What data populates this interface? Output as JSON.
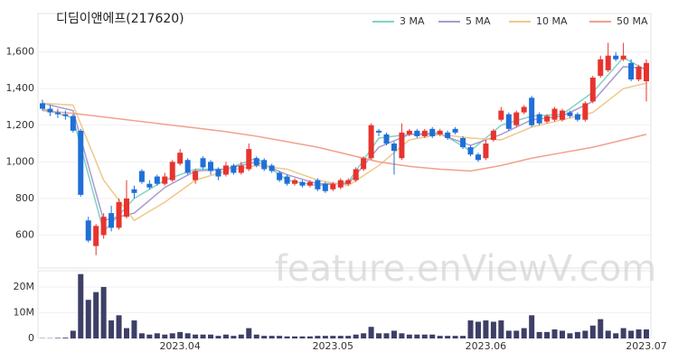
{
  "chart_data": {
    "type": "candlestick",
    "title": "디딤이앤에프(217620)",
    "watermark": "feature.enViewV.com",
    "categories": [
      null,
      null,
      null,
      null,
      null,
      null,
      null,
      null,
      null,
      null,
      null,
      null,
      null,
      null,
      null,
      null,
      null,
      null,
      "2023.04",
      null,
      null,
      null,
      null,
      null,
      null,
      null,
      null,
      null,
      null,
      null,
      null,
      null,
      null,
      null,
      null,
      null,
      null,
      null,
      "2023.05",
      null,
      null,
      null,
      null,
      null,
      null,
      null,
      null,
      null,
      null,
      null,
      null,
      null,
      null,
      null,
      null,
      null,
      null,
      null,
      "2023.06",
      null,
      null,
      null,
      null,
      null,
      null,
      null,
      null,
      null,
      null,
      null,
      null,
      null,
      null,
      null,
      null,
      null,
      null,
      null,
      null,
      "2023.07"
    ],
    "open": [
      1320,
      1290,
      1270,
      1260,
      1250,
      1170,
      680,
      540,
      600,
      720,
      640,
      700,
      850,
      950,
      880,
      920,
      880,
      900,
      990,
      1010,
      900,
      1020,
      1000,
      960,
      930,
      980,
      940,
      960,
      1020,
      1010,
      980,
      940,
      920,
      880,
      890,
      870,
      900,
      880,
      850,
      860,
      880,
      900,
      960,
      1020,
      1170,
      1150,
      1100,
      1020,
      1150,
      1170,
      1140,
      1180,
      1150,
      1160,
      1180,
      1130,
      1080,
      1040,
      1020,
      1120,
      1230,
      1260,
      1200,
      1270,
      1350,
      1260,
      1220,
      1230,
      1230,
      1270,
      1260,
      1230,
      1330,
      1470,
      1500,
      1580,
      1560,
      1540,
      1450,
      1440
    ],
    "high": [
      1340,
      1310,
      1290,
      1280,
      1260,
      1180,
      700,
      660,
      720,
      760,
      800,
      900,
      870,
      960,
      900,
      930,
      940,
      1010,
      1070,
      1020,
      960,
      1030,
      1010,
      970,
      1000,
      990,
      1000,
      1100,
      1030,
      1020,
      990,
      950,
      930,
      910,
      900,
      900,
      910,
      890,
      890,
      910,
      910,
      970,
      1030,
      1210,
      1180,
      1160,
      1110,
      1210,
      1180,
      1180,
      1180,
      1190,
      1180,
      1170,
      1190,
      1140,
      1090,
      1050,
      1120,
      1180,
      1300,
      1270,
      1280,
      1310,
      1360,
      1270,
      1260,
      1300,
      1290,
      1280,
      1270,
      1330,
      1470,
      1580,
      1650,
      1600,
      1650,
      1560,
      1530,
      1560
    ],
    "low": [
      1280,
      1250,
      1240,
      1230,
      1160,
      810,
      560,
      490,
      580,
      620,
      630,
      690,
      800,
      880,
      850,
      870,
      870,
      890,
      980,
      930,
      880,
      960,
      930,
      900,
      920,
      930,
      930,
      950,
      970,
      950,
      940,
      890,
      870,
      870,
      860,
      860,
      840,
      830,
      840,
      850,
      870,
      890,
      950,
      1010,
      1140,
      1090,
      930,
      1010,
      1140,
      1130,
      1130,
      1130,
      1140,
      1120,
      1150,
      1070,
      1030,
      1000,
      1010,
      1110,
      1220,
      1170,
      1190,
      1260,
      1190,
      1200,
      1210,
      1220,
      1220,
      1240,
      1220,
      1220,
      1320,
      1460,
      1490,
      1550,
      1550,
      1440,
      1440,
      1330
    ],
    "close": [
      1290,
      1270,
      1260,
      1250,
      1170,
      820,
      570,
      650,
      700,
      640,
      780,
      800,
      830,
      890,
      860,
      880,
      920,
      1000,
      1050,
      940,
      950,
      970,
      950,
      920,
      980,
      940,
      980,
      1070,
      980,
      960,
      950,
      900,
      880,
      900,
      870,
      890,
      850,
      840,
      880,
      900,
      900,
      960,
      1020,
      1200,
      1160,
      1100,
      1060,
      1160,
      1170,
      1140,
      1170,
      1140,
      1170,
      1130,
      1160,
      1080,
      1040,
      1010,
      1100,
      1170,
      1280,
      1180,
      1270,
      1300,
      1200,
      1210,
      1250,
      1290,
      1280,
      1250,
      1230,
      1320,
      1460,
      1560,
      1580,
      1560,
      1580,
      1450,
      1520,
      1540
    ],
    "up_color": "#e8332e",
    "down_color": "#1f6fd8",
    "ylim": [
      420,
      1810
    ],
    "yticks": [
      600,
      800,
      {
        "value": 1000,
        "label": "1,000"
      },
      {
        "value": 1200,
        "label": "1,200"
      },
      {
        "value": 1400,
        "label": "1,400"
      },
      {
        "value": 1600,
        "label": "1,600"
      }
    ],
    "series": [
      {
        "name": "3 MA",
        "color": "#7fd3c4",
        "x": [
          0,
          4,
          8,
          12,
          16,
          20,
          24,
          28,
          32,
          36,
          40,
          44,
          48,
          52,
          56,
          60,
          64,
          68,
          72,
          76,
          79
        ],
        "values": [
          1290,
          1240,
          620,
          800,
          900,
          960,
          960,
          1020,
          900,
          870,
          890,
          1130,
          1150,
          1160,
          1060,
          1200,
          1250,
          1260,
          1380,
          1570,
          1500
        ]
      },
      {
        "name": "5 MA",
        "color": "#a99bd1",
        "x": [
          0,
          4,
          8,
          12,
          16,
          20,
          24,
          28,
          32,
          36,
          40,
          44,
          48,
          52,
          56,
          60,
          64,
          68,
          72,
          76,
          79
        ],
        "values": [
          1320,
          1280,
          680,
          720,
          860,
          950,
          960,
          1000,
          930,
          880,
          880,
          1080,
          1150,
          1150,
          1090,
          1150,
          1230,
          1250,
          1330,
          1520,
          1510
        ]
      },
      {
        "name": "10 MA",
        "color": "#f0c88a",
        "x": [
          0,
          4,
          8,
          12,
          16,
          20,
          24,
          28,
          32,
          36,
          40,
          44,
          48,
          52,
          56,
          60,
          64,
          68,
          72,
          76,
          79
        ],
        "values": [
          1320,
          1310,
          900,
          680,
          780,
          900,
          950,
          980,
          960,
          900,
          870,
          980,
          1120,
          1150,
          1130,
          1120,
          1190,
          1230,
          1270,
          1400,
          1430
        ]
      },
      {
        "name": "50 MA",
        "color": "#f2a08d",
        "x": [
          0,
          4,
          8,
          12,
          16,
          20,
          24,
          28,
          32,
          36,
          40,
          44,
          48,
          52,
          56,
          60,
          64,
          68,
          72,
          76,
          79
        ],
        "values": [
          1280,
          1265,
          1245,
          1225,
          1205,
          1185,
          1165,
          1140,
          1110,
          1080,
          1040,
          1000,
          975,
          960,
          950,
          980,
          1020,
          1050,
          1080,
          1120,
          1150
        ]
      }
    ],
    "volume": {
      "color": "#3d3f66",
      "ylim": [
        0,
        26300000
      ],
      "yticks": [
        0,
        {
          "value": 10000000,
          "label": "10M"
        },
        {
          "value": 20000000,
          "label": "20M"
        }
      ],
      "values": [
        100000,
        100000,
        200000,
        300000,
        3000000,
        25000000,
        15000000,
        18000000,
        20000000,
        7000000,
        9000000,
        4000000,
        7000000,
        2000000,
        1500000,
        2000000,
        1500000,
        2000000,
        2500000,
        2000000,
        1500000,
        1500000,
        1500000,
        1000000,
        1500000,
        1000000,
        1500000,
        4000000,
        1500000,
        1000000,
        1000000,
        1000000,
        800000,
        800000,
        800000,
        800000,
        1000000,
        1000000,
        1000000,
        1000000,
        1000000,
        1500000,
        2000000,
        4500000,
        2000000,
        2000000,
        3000000,
        2000000,
        1500000,
        1500000,
        1500000,
        1500000,
        1000000,
        1000000,
        1000000,
        1000000,
        7000000,
        6500000,
        7000000,
        6500000,
        7000000,
        3000000,
        3000000,
        4000000,
        9000000,
        2500000,
        2500000,
        3500000,
        3000000,
        2000000,
        2500000,
        3000000,
        5000000,
        7500000,
        3000000,
        2000000,
        4000000,
        3000000,
        3500000,
        3500000
      ]
    }
  }
}
